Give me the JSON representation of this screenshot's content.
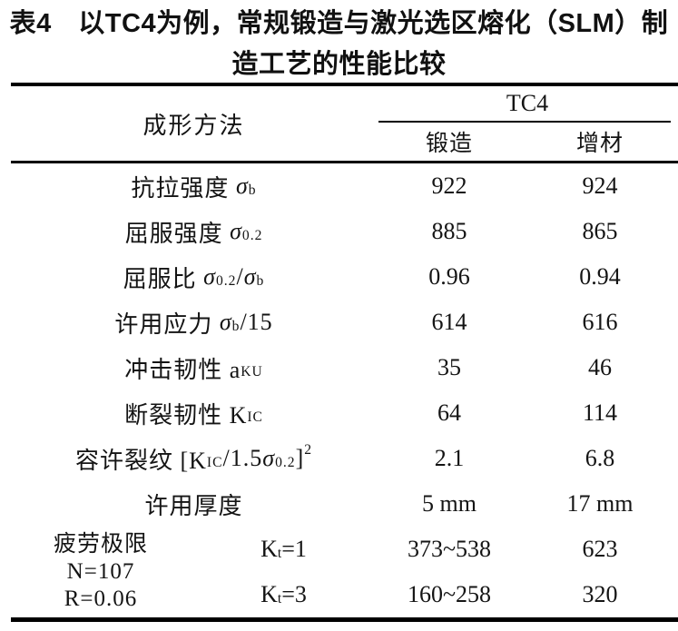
{
  "title": {
    "line1": "表4　以TC4为例，常规锻造与激光选区熔化（SLM）制",
    "line2": "造工艺的性能比较"
  },
  "colors": {
    "text": "#141414",
    "rule": "#000000",
    "background": "#ffffff"
  },
  "table": {
    "method_header": "成形方法",
    "group_header": "TC4",
    "sub_headers": [
      "锻造",
      "增材"
    ],
    "rows": [
      {
        "segments": [
          {
            "t": "抗拉强度 "
          },
          {
            "it": "σ"
          },
          {
            "sub": "b"
          }
        ],
        "forging": "922",
        "additive": "924"
      },
      {
        "segments": [
          {
            "t": "屈服强度 "
          },
          {
            "it": "σ"
          },
          {
            "sub": "0.2"
          }
        ],
        "forging": "885",
        "additive": "865"
      },
      {
        "segments": [
          {
            "t": "屈服比 "
          },
          {
            "it": "σ"
          },
          {
            "sub": "0.2"
          },
          {
            "t": "/"
          },
          {
            "it": "σ"
          },
          {
            "sub": "b"
          }
        ],
        "forging": "0.96",
        "additive": "0.94"
      },
      {
        "segments": [
          {
            "t": "许用应力 "
          },
          {
            "it": "σ"
          },
          {
            "sub": "b"
          },
          {
            "t": "/15"
          }
        ],
        "forging": "614",
        "additive": "616"
      },
      {
        "segments": [
          {
            "t": "冲击韧性 a"
          },
          {
            "sub": "KU"
          }
        ],
        "forging": "35",
        "additive": "46"
      },
      {
        "segments": [
          {
            "t": "断裂韧性 K"
          },
          {
            "sub": "IC"
          }
        ],
        "forging": "64",
        "additive": "114"
      },
      {
        "segments": [
          {
            "t": "容许裂纹 [K"
          },
          {
            "sub": "IC"
          },
          {
            "t": "/1.5"
          },
          {
            "it": "σ"
          },
          {
            "sub": "0.2"
          },
          {
            "t": "]"
          },
          {
            "sup": "2"
          }
        ],
        "forging": "2.1",
        "additive": "6.8"
      },
      {
        "segments": [
          {
            "t": "许用厚度"
          }
        ],
        "forging": "5 mm",
        "additive": "17 mm"
      }
    ],
    "fatigue": {
      "label_lines": [
        "疲劳极限",
        "N=107",
        "R=0.06"
      ],
      "sub_rows": [
        {
          "k_segments": [
            {
              "t": "K"
            },
            {
              "sub": "t"
            },
            {
              "t": "=1"
            }
          ],
          "forging": "373~538",
          "additive": "623"
        },
        {
          "k_segments": [
            {
              "t": "K"
            },
            {
              "sub": "t"
            },
            {
              "t": "=3"
            }
          ],
          "forging": "160~258",
          "additive": "320"
        }
      ]
    }
  }
}
